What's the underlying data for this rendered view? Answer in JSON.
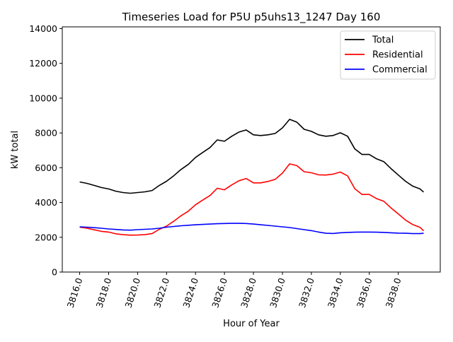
{
  "chart_data": {
    "type": "line",
    "title": "Timeseries Load for P5U p5uhs13_1247  Day 160",
    "xlabel": "Hour of Year",
    "ylabel": "kW total",
    "xlim": [
      3814.8,
      3840.9
    ],
    "ylim": [
      0,
      14100
    ],
    "xticks": [
      "3816.0",
      "3818.0",
      "3820.0",
      "3822.0",
      "3824.0",
      "3826.0",
      "3828.0",
      "3830.0",
      "3832.0",
      "3834.0",
      "3836.0",
      "3838.0"
    ],
    "yticks": [
      "0",
      "2000",
      "4000",
      "6000",
      "8000",
      "10000",
      "12000",
      "14000"
    ],
    "grid": false,
    "legend_position": "top-right",
    "x": [
      3816,
      3816.5,
      3817,
      3817.5,
      3818,
      3818.5,
      3819,
      3819.5,
      3820,
      3820.5,
      3821,
      3821.5,
      3822,
      3822.5,
      3823,
      3823.5,
      3824,
      3824.5,
      3825,
      3825.5,
      3826,
      3826.5,
      3827,
      3827.5,
      3828,
      3828.5,
      3829,
      3829.5,
      3830,
      3830.5,
      3831,
      3831.5,
      3832,
      3832.5,
      3833,
      3833.5,
      3834,
      3834.5,
      3835,
      3835.5,
      3836,
      3836.5,
      3837,
      3837.5,
      3838,
      3838.5,
      3839,
      3839.5,
      3839.75
    ],
    "series": [
      {
        "name": "Total",
        "color": "#000000",
        "values": [
          5180,
          5100,
          4980,
          4860,
          4780,
          4650,
          4570,
          4530,
          4570,
          4610,
          4690,
          4980,
          5220,
          5540,
          5900,
          6190,
          6590,
          6880,
          7160,
          7600,
          7520,
          7810,
          8050,
          8170,
          7890,
          7850,
          7890,
          7970,
          8290,
          8780,
          8620,
          8210,
          8090,
          7890,
          7810,
          7850,
          8010,
          7810,
          7080,
          6760,
          6760,
          6510,
          6350,
          5950,
          5580,
          5220,
          4940,
          4780,
          4600
        ]
      },
      {
        "name": "Residential",
        "color": "#ff0000",
        "values": [
          2580,
          2520,
          2430,
          2340,
          2300,
          2200,
          2150,
          2120,
          2130,
          2150,
          2210,
          2460,
          2640,
          2920,
          3240,
          3500,
          3870,
          4140,
          4400,
          4820,
          4730,
          5010,
          5250,
          5380,
          5130,
          5130,
          5210,
          5330,
          5690,
          6220,
          6120,
          5770,
          5710,
          5590,
          5580,
          5630,
          5750,
          5530,
          4790,
          4460,
          4460,
          4220,
          4070,
          3690,
          3340,
          2990,
          2730,
          2570,
          2370
        ]
      },
      {
        "name": "Commercial",
        "color": "#0000ff",
        "values": [
          2600,
          2580,
          2550,
          2520,
          2480,
          2450,
          2420,
          2410,
          2440,
          2460,
          2480,
          2520,
          2580,
          2620,
          2660,
          2690,
          2720,
          2740,
          2760,
          2780,
          2790,
          2800,
          2800,
          2790,
          2760,
          2720,
          2680,
          2640,
          2600,
          2560,
          2500,
          2440,
          2380,
          2300,
          2230,
          2220,
          2260,
          2280,
          2290,
          2300,
          2300,
          2290,
          2280,
          2260,
          2240,
          2230,
          2210,
          2210,
          2230
        ]
      }
    ]
  }
}
